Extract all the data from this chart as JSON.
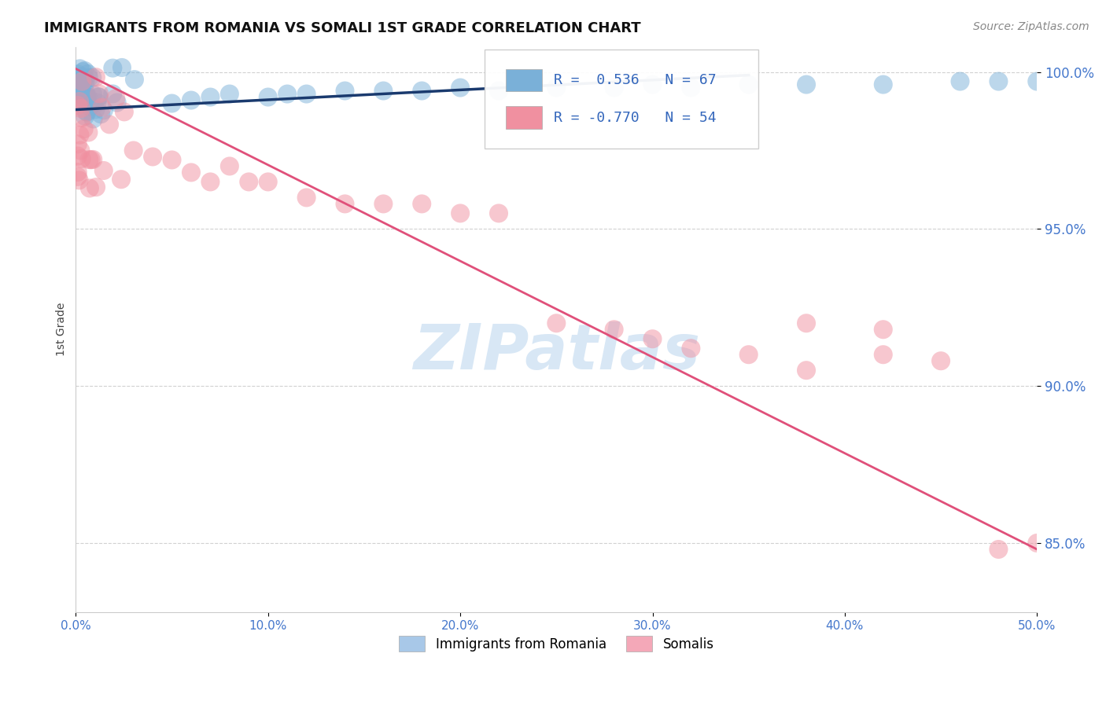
{
  "title": "IMMIGRANTS FROM ROMANIA VS SOMALI 1ST GRADE CORRELATION CHART",
  "source": "Source: ZipAtlas.com",
  "ylabel": "1st Grade",
  "xlim": [
    0.0,
    0.5
  ],
  "ylim": [
    0.828,
    1.008
  ],
  "xticks": [
    0.0,
    0.1,
    0.2,
    0.3,
    0.4,
    0.5
  ],
  "xticklabels": [
    "0.0%",
    "10.0%",
    "20.0%",
    "30.0%",
    "40.0%",
    "50.0%"
  ],
  "yticks": [
    0.85,
    0.9,
    0.95,
    1.0
  ],
  "yticklabels": [
    "85.0%",
    "90.0%",
    "95.0%",
    "100.0%"
  ],
  "legend_entries": [
    {
      "label": "Immigrants from Romania",
      "color": "#a8c8e8"
    },
    {
      "label": "Somalis",
      "color": "#f4a8b8"
    }
  ],
  "R_blue": 0.536,
  "N_blue": 67,
  "R_pink": -0.77,
  "N_pink": 54,
  "blue_color": "#7ab0d8",
  "pink_color": "#f090a0",
  "blue_line_color": "#1a3a6e",
  "pink_line_color": "#e0507a",
  "watermark": "ZIPatlas",
  "background_color": "#ffffff",
  "grid_color": "#cccccc",
  "tick_color": "#4477cc",
  "blue_line_x": [
    0.0,
    0.35
  ],
  "blue_line_y": [
    0.988,
    0.999
  ],
  "pink_line_x": [
    0.0,
    0.5
  ],
  "pink_line_y": [
    1.001,
    0.848
  ]
}
